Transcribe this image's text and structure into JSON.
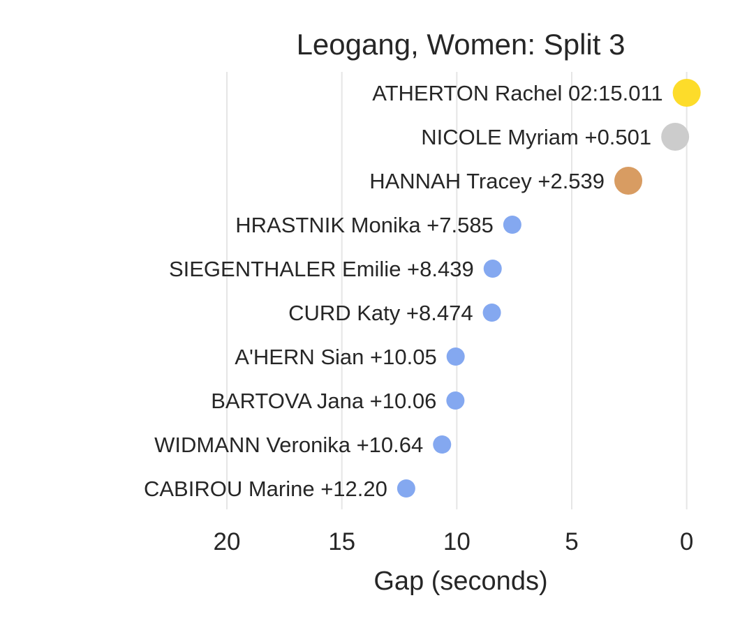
{
  "chart_data": {
    "type": "scatter",
    "title": "Leogang, Women: Split 3",
    "xlabel": "Gap (seconds)",
    "ylabel": "",
    "xlim": [
      24.1,
      -0.8
    ],
    "x_inverted": true,
    "xticks": [
      20,
      15,
      10,
      5,
      0
    ],
    "xtick_labels": [
      "20",
      "15",
      "10",
      "5",
      "0"
    ],
    "grid": "vertical",
    "legend": "none",
    "points": [
      {
        "label": "ATHERTON Rachel 02:15.011",
        "x": 0.0,
        "color": "#fddc2a",
        "tier": "gold"
      },
      {
        "label": "NICOLE Myriam +0.501",
        "x": 0.501,
        "color": "#cccccc",
        "tier": "silver"
      },
      {
        "label": "HANNAH Tracey +2.539",
        "x": 2.539,
        "color": "#d89c62",
        "tier": "bronze"
      },
      {
        "label": "HRASTNIK Monika +7.585",
        "x": 7.585,
        "color": "#84a8f0",
        "tier": "other"
      },
      {
        "label": "SIEGENTHALER Emilie +8.439",
        "x": 8.439,
        "color": "#84a8f0",
        "tier": "other"
      },
      {
        "label": "CURD Katy +8.474",
        "x": 8.474,
        "color": "#84a8f0",
        "tier": "other"
      },
      {
        "label": "A'HERN Sian +10.05",
        "x": 10.05,
        "color": "#84a8f0",
        "tier": "other"
      },
      {
        "label": "BARTOVA Jana +10.06",
        "x": 10.06,
        "color": "#84a8f0",
        "tier": "other"
      },
      {
        "label": "WIDMANN Veronika +10.64",
        "x": 10.64,
        "color": "#84a8f0",
        "tier": "other"
      },
      {
        "label": "CABIROU Marine +12.20",
        "x": 12.2,
        "color": "#84a8f0",
        "tier": "other"
      }
    ]
  }
}
